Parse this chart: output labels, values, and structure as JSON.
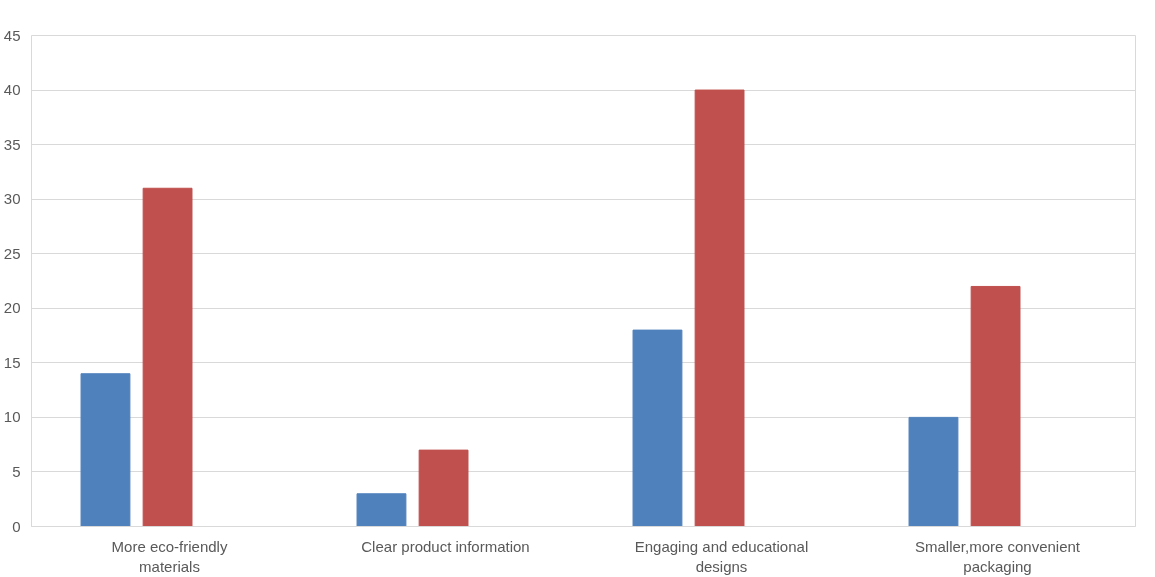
{
  "chart_data": {
    "type": "bar",
    "categories": [
      "More eco-friendly materials",
      "Clear product information",
      "Engaging and educational designs",
      "Smaller,more convenient packaging"
    ],
    "series": [
      {
        "color": "#4f81bd",
        "values": [
          14,
          3,
          18,
          10
        ]
      },
      {
        "color": "#c0504d",
        "values": [
          31,
          7,
          40,
          22
        ]
      }
    ],
    "ylim": [
      0,
      45
    ],
    "yticks": [
      0,
      5,
      10,
      15,
      20,
      25,
      30,
      35,
      40,
      45
    ],
    "grid": "y"
  }
}
